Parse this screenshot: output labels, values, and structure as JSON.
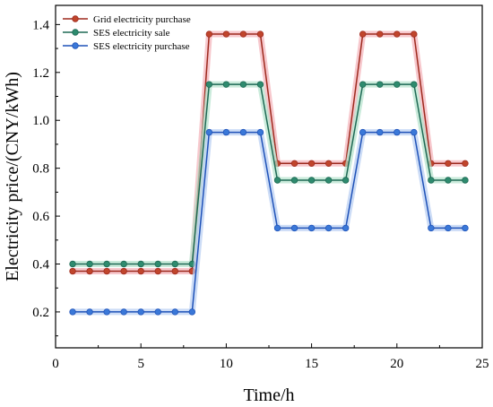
{
  "chart_data": {
    "type": "line",
    "title": "",
    "xlabel": "Time/h",
    "ylabel": "Electricity price/(CNY/kWh)",
    "xlim": [
      0,
      25
    ],
    "ylim": [
      0.05,
      1.48
    ],
    "xticks": [
      0,
      5,
      10,
      15,
      20,
      25
    ],
    "yticks": [
      0.2,
      0.4,
      0.6,
      0.8,
      1.0,
      1.2,
      1.4
    ],
    "ytick_labels": [
      "0.2",
      "0.4",
      "0.6",
      "0.8",
      "1.0",
      "1.2",
      "1.4"
    ],
    "grid": false,
    "legend_position": "top-left",
    "x": [
      1,
      2,
      3,
      4,
      5,
      6,
      7,
      8,
      9,
      10,
      11,
      12,
      13,
      14,
      15,
      16,
      17,
      18,
      19,
      20,
      21,
      22,
      23,
      24
    ],
    "series": [
      {
        "name": "Grid electricity purchase",
        "color": "#9e2a1e",
        "marker": "#c0452c",
        "glow": "#f4b0b8",
        "values": [
          0.37,
          0.37,
          0.37,
          0.37,
          0.37,
          0.37,
          0.37,
          0.37,
          1.36,
          1.36,
          1.36,
          1.36,
          0.82,
          0.82,
          0.82,
          0.82,
          0.82,
          1.36,
          1.36,
          1.36,
          1.36,
          0.82,
          0.82,
          0.82
        ]
      },
      {
        "name": "SES electricity sale",
        "color": "#1f6a55",
        "marker": "#2e8b6e",
        "glow": "#b4e2cc",
        "values": [
          0.4,
          0.4,
          0.4,
          0.4,
          0.4,
          0.4,
          0.4,
          0.4,
          1.15,
          1.15,
          1.15,
          1.15,
          0.75,
          0.75,
          0.75,
          0.75,
          0.75,
          1.15,
          1.15,
          1.15,
          1.15,
          0.75,
          0.75,
          0.75
        ]
      },
      {
        "name": "SES electricity purchase",
        "color": "#1f52b8",
        "marker": "#3a78d8",
        "glow": "#b6cdf2",
        "values": [
          0.2,
          0.2,
          0.2,
          0.2,
          0.2,
          0.2,
          0.2,
          0.2,
          0.95,
          0.95,
          0.95,
          0.95,
          0.55,
          0.55,
          0.55,
          0.55,
          0.55,
          0.95,
          0.95,
          0.95,
          0.95,
          0.55,
          0.55,
          0.55
        ]
      }
    ]
  }
}
